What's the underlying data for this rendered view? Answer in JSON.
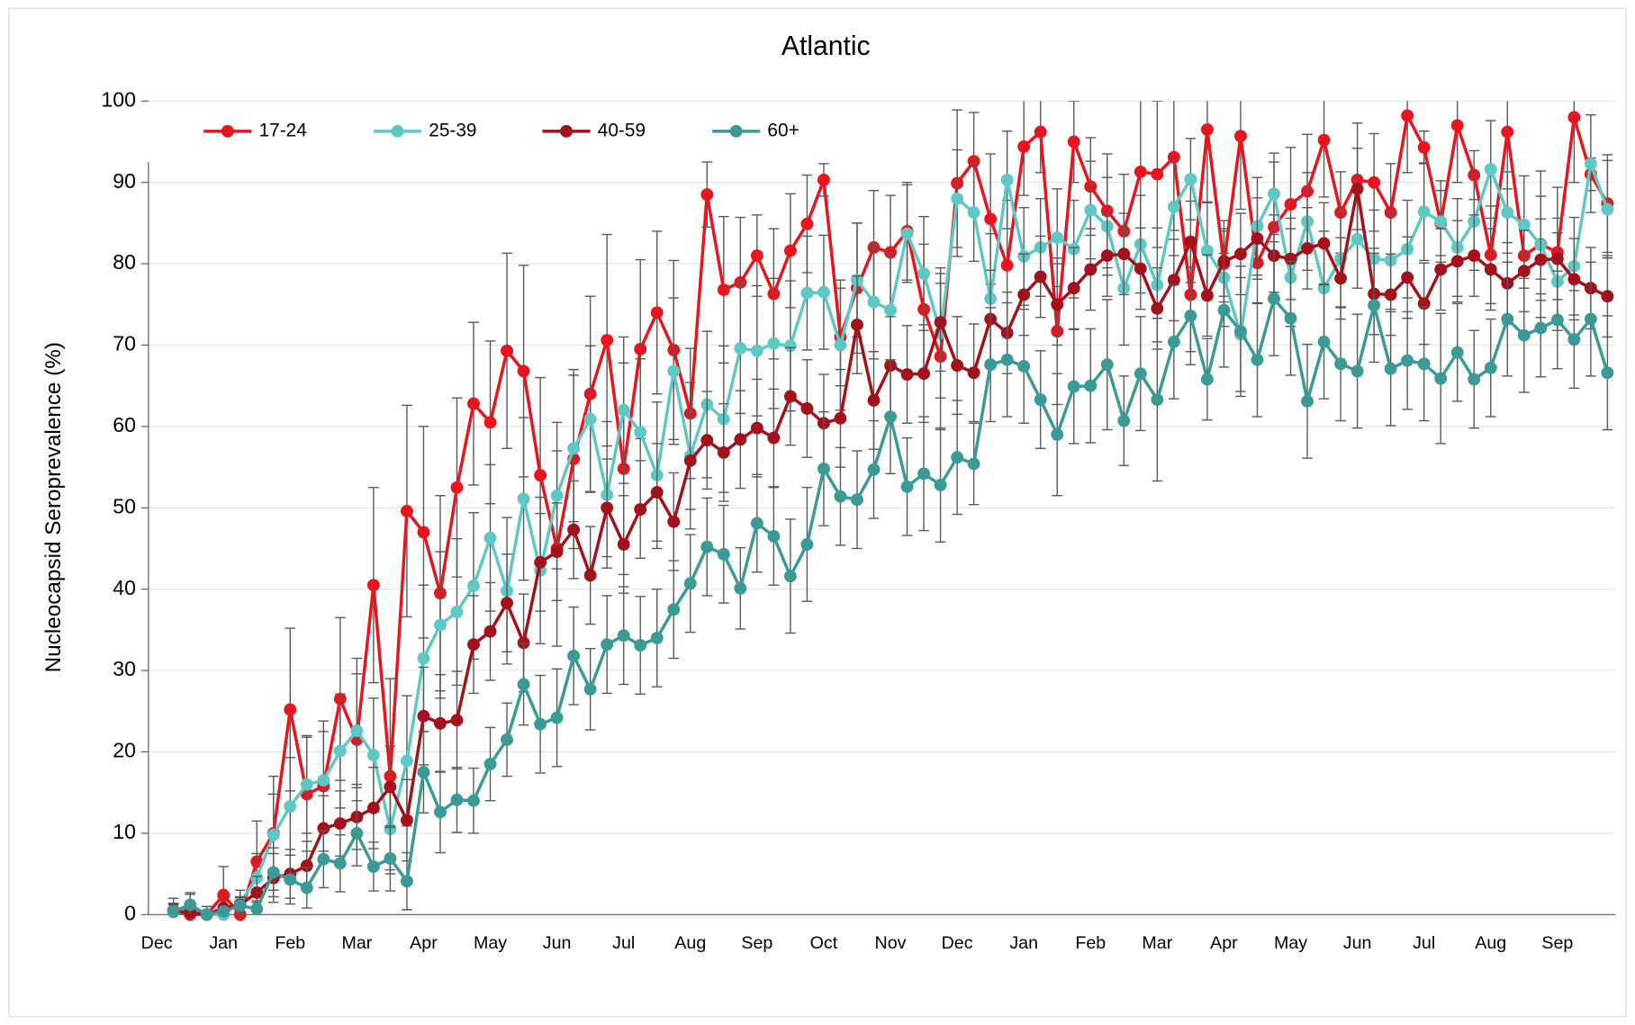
{
  "chart_data": {
    "type": "line",
    "title": "Atlantic",
    "y_label": "Nucleocapsid Seroprevalence (%)",
    "categories": [
      "Dec",
      null,
      null,
      null,
      "Jan",
      null,
      null,
      null,
      "Feb",
      null,
      null,
      null,
      "Mar",
      null,
      null,
      null,
      "Apr",
      null,
      null,
      null,
      "May",
      null,
      null,
      null,
      "Jun",
      null,
      null,
      null,
      "Jul",
      null,
      null,
      null,
      "Aug",
      null,
      null,
      null,
      "Sep",
      null,
      null,
      null,
      "Oct",
      null,
      null,
      null,
      "Nov",
      null,
      null,
      null,
      "Dec",
      null,
      null,
      null,
      "Jan",
      null,
      null,
      null,
      "Feb",
      null,
      null,
      null,
      "Mar",
      null,
      null,
      null,
      "Apr",
      null,
      null,
      null,
      "May",
      null,
      null,
      null,
      "Jun",
      null,
      null,
      null,
      "Jul",
      null,
      null,
      null,
      "Aug",
      null,
      null,
      null,
      "Sep",
      null,
      null
    ],
    "ylim": [
      0,
      100
    ],
    "yticks": [
      0,
      10,
      20,
      30,
      40,
      50,
      60,
      70,
      80,
      90,
      100
    ],
    "grid": true,
    "legend": "top-left",
    "series": [
      {
        "name": "17-24",
        "color": "#e8151f",
        "values": [
          0.5,
          0,
          0,
          2.4,
          0,
          6.5,
          10,
          25.2,
          14.8,
          15.8,
          26.5,
          21.5,
          40.5,
          17,
          49.6,
          47,
          39.5,
          52.5,
          62.8,
          60.5,
          69.3,
          66.8,
          54,
          45,
          56,
          64,
          70.6,
          54.8,
          69.5,
          74,
          69.4,
          61.6,
          88.5,
          76.8,
          77.7,
          81,
          76.3,
          81.6,
          84.9,
          90.3,
          71,
          77,
          82,
          81.4,
          84,
          74.4,
          68.6,
          89.9,
          92.6,
          85.5,
          79.8,
          94.4,
          96.2,
          71.7,
          95,
          89.5,
          86.5,
          84,
          91.3,
          91,
          93.1,
          76.2,
          96.5,
          80,
          95.7,
          80.1,
          84.5,
          87.3,
          88.9,
          95.2,
          86.3,
          90.3,
          90,
          86.3,
          98.2,
          94.3,
          85,
          97,
          90.9,
          81.1,
          96.2,
          81,
          82.4,
          81.4,
          98,
          91,
          87.4
        ],
        "errors": [
          1.5,
          1,
          1,
          3.5,
          1,
          5,
          7,
          10,
          7,
          8,
          10,
          10,
          12,
          12,
          13,
          13,
          12,
          11,
          10,
          10,
          12,
          13,
          12,
          12,
          11,
          12,
          13,
          13,
          11,
          10,
          11,
          8,
          4,
          9,
          8,
          5,
          8,
          7,
          6,
          2,
          6,
          8,
          7,
          7,
          6,
          8,
          9,
          9,
          6,
          8,
          8,
          6,
          5,
          9,
          5,
          6,
          7,
          7,
          9,
          9,
          9,
          7,
          9,
          4,
          9,
          5,
          8,
          7,
          7,
          7,
          5,
          7,
          6,
          6,
          7,
          2,
          4,
          7,
          3,
          6,
          7,
          4,
          9,
          8,
          8,
          2,
          6
        ]
      },
      {
        "name": "25-39",
        "color": "#5ec9c4",
        "values": [
          0.3,
          1,
          0,
          0,
          1.5,
          4.5,
          9.8,
          13.3,
          16,
          16.5,
          20.1,
          22.6,
          19.6,
          10.5,
          18.9,
          31.5,
          35.6,
          37.2,
          40.4,
          46.3,
          39.8,
          51.1,
          42.3,
          51.5,
          57.3,
          60.9,
          51.6,
          62,
          59.3,
          54,
          66.8,
          56.4,
          62.7,
          60.9,
          69.6,
          69.3,
          70.2,
          69.9,
          76.4,
          76.5,
          70,
          78,
          75.3,
          74.3,
          83.7,
          78.8,
          71.5,
          88,
          86.3,
          75.7,
          90.3,
          80.9,
          82,
          83.2,
          81.8,
          86.6,
          84.6,
          77,
          82.4,
          77.4,
          87,
          90.4,
          81.6,
          78.3,
          71.3,
          84.6,
          88.6,
          78.3,
          85.2,
          77,
          80.6,
          83,
          80.6,
          80.4,
          81.8,
          86.4,
          85.2,
          82,
          85.2,
          91.6,
          86.3,
          84.8,
          82.3,
          77.8,
          79.7,
          92.3,
          86.7
        ],
        "errors": [
          1,
          1.5,
          0.5,
          0.5,
          1.5,
          3,
          5,
          6,
          6,
          6,
          7,
          7,
          7,
          5,
          8,
          9,
          9,
          9,
          9,
          9,
          9,
          10,
          9,
          9,
          9,
          9,
          9,
          9,
          9,
          9,
          9,
          9,
          9,
          9,
          8,
          8,
          8,
          8,
          7,
          7,
          8,
          7,
          7,
          7,
          6,
          7,
          8,
          6,
          6,
          8,
          6,
          6,
          6,
          6,
          6,
          6,
          6,
          7,
          6,
          7,
          6,
          5,
          6,
          6,
          7,
          6,
          5,
          6,
          6,
          7,
          6,
          6,
          6,
          6,
          6,
          6,
          5,
          6,
          6,
          6,
          5,
          6,
          6,
          6,
          6,
          6,
          6
        ]
      },
      {
        "name": "40-59",
        "color": "#a3121a",
        "values": [
          0.4,
          0.3,
          0,
          0.8,
          1.2,
          2.7,
          4.5,
          5,
          6,
          10.6,
          11.2,
          12,
          13.1,
          15.7,
          11.6,
          24.4,
          23.5,
          23.9,
          33.2,
          34.8,
          38.3,
          33.4,
          43.3,
          44.6,
          47.3,
          41.7,
          50,
          45.5,
          49.8,
          51.9,
          48.3,
          55.8,
          58.3,
          56.8,
          58.4,
          59.8,
          58.6,
          63.7,
          62.2,
          60.4,
          61,
          72.5,
          63.2,
          67.5,
          66.4,
          66.5,
          72.8,
          67.5,
          66.6,
          73.2,
          71.5,
          76.2,
          78.4,
          75,
          77,
          79.3,
          81,
          81.2,
          79.4,
          74.5,
          78,
          82.7,
          76.1,
          80.3,
          81.2,
          83.1,
          81,
          80.6,
          81.9,
          82.5,
          78.2,
          89.2,
          76.3,
          76.2,
          78.3,
          75.1,
          79.3,
          80.3,
          81,
          79.3,
          77.6,
          79.1,
          80.5,
          80.6,
          78.1,
          77,
          76
        ],
        "errors": [
          0.8,
          0.8,
          0.3,
          0.8,
          1,
          2,
          3,
          3,
          3,
          4,
          4,
          4,
          5,
          5,
          5,
          6,
          6,
          6,
          6,
          6,
          6,
          6,
          6,
          6,
          6,
          6,
          6,
          6,
          6,
          6,
          6,
          6,
          6,
          6,
          6,
          6,
          6,
          6,
          6,
          6,
          6,
          6,
          6,
          6,
          6,
          6,
          6,
          6,
          6,
          6,
          5,
          5,
          5,
          5,
          5,
          5,
          5,
          5,
          5,
          5,
          5,
          5,
          5,
          5,
          5,
          5,
          5,
          5,
          5,
          5,
          5,
          5,
          5,
          5,
          5,
          5,
          5,
          5,
          5,
          5,
          5,
          5,
          5,
          5,
          5,
          5,
          5
        ]
      },
      {
        "name": "60+",
        "color": "#3a9a96",
        "values": [
          0.4,
          1.2,
          0,
          0.4,
          1.1,
          0.7,
          5.2,
          4.3,
          3.3,
          6.8,
          6.3,
          10,
          5.9,
          6.9,
          4.1,
          17.5,
          12.6,
          14.1,
          14,
          18.5,
          21.5,
          28.3,
          23.4,
          24.2,
          31.8,
          27.7,
          33.2,
          34.3,
          33.1,
          34,
          37.5,
          40.7,
          45.2,
          44.3,
          40.1,
          48.1,
          46.5,
          41.6,
          45.5,
          54.8,
          51.4,
          51,
          54.7,
          61.2,
          52.6,
          54.2,
          52.8,
          56.2,
          55.4,
          67.6,
          68.2,
          67.4,
          63.3,
          59,
          64.9,
          65,
          67.6,
          60.7,
          66.5,
          63.3,
          70.4,
          73.6,
          65.8,
          74.3,
          71.7,
          68.2,
          75.7,
          73.3,
          63.1,
          70.4,
          67.7,
          66.8,
          74.9,
          67.1,
          68.1,
          67.7,
          65.9,
          69.1,
          65.8,
          67.2,
          73.2,
          71.2,
          72.1,
          73.1,
          70.7,
          73.2,
          66.6
        ],
        "errors": [
          1,
          1.5,
          0.3,
          0.5,
          1,
          1,
          3,
          3,
          2.5,
          3.5,
          3.5,
          4,
          3,
          4,
          3.5,
          5,
          5,
          4,
          4,
          4.5,
          4.5,
          5,
          6,
          6,
          6,
          5,
          6,
          6,
          6,
          6,
          6,
          6,
          6,
          6,
          5,
          6,
          6,
          7,
          7,
          7,
          6,
          6,
          6,
          7,
          6,
          7,
          7,
          7,
          5,
          7,
          7,
          7,
          6,
          7.5,
          7,
          7,
          8,
          5.5,
          7,
          10,
          7,
          6,
          5,
          7,
          8,
          7,
          7,
          7,
          7,
          7,
          7,
          7,
          7,
          7,
          6,
          7,
          8,
          6,
          6,
          6,
          7,
          7,
          6,
          6,
          6,
          7,
          7
        ]
      }
    ]
  }
}
